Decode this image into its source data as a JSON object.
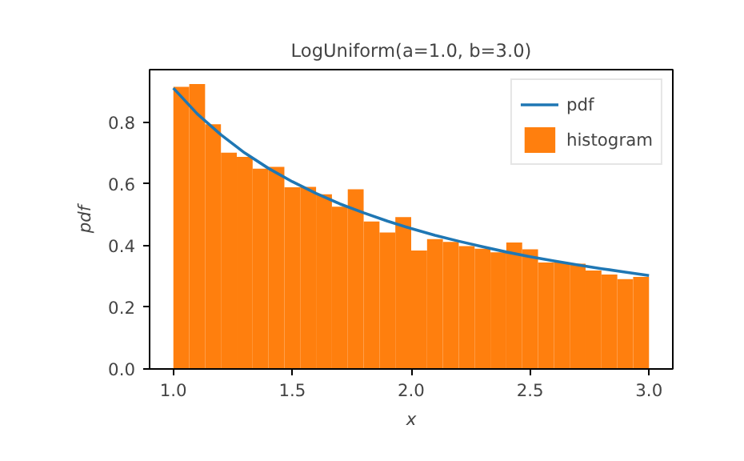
{
  "chart_data": {
    "type": "histogram",
    "title": "LogUniform(a=1.0, b=3.0)",
    "xlabel": "x",
    "ylabel": "pdf",
    "xlim": [
      0.9,
      3.1
    ],
    "ylim": [
      0,
      0.97
    ],
    "xticks": [
      {
        "value": 1.0,
        "label": "1.0"
      },
      {
        "value": 1.5,
        "label": "1.5"
      },
      {
        "value": 2.0,
        "label": "2.0"
      },
      {
        "value": 2.5,
        "label": "2.5"
      },
      {
        "value": 3.0,
        "label": "3.0"
      }
    ],
    "yticks": [
      {
        "value": 0,
        "label": "0.0"
      },
      {
        "value": 0.2,
        "label": "0.2"
      },
      {
        "value": 0.4,
        "label": "0.4"
      },
      {
        "value": 0.6,
        "label": "0.6"
      },
      {
        "value": 0.8,
        "label": "0.8"
      }
    ],
    "grid": false,
    "legend": "top right",
    "series": [
      {
        "name": "histogram",
        "color": "#ff7f0e",
        "bins": [
          1.0,
          1.0667,
          1.1333,
          1.2,
          1.2667,
          1.3333,
          1.4,
          1.4667,
          1.5333,
          1.6,
          1.6667,
          1.7333,
          1.8,
          1.8667,
          1.9333,
          2.0,
          2.0667,
          2.1333,
          2.2,
          2.2667,
          2.3333,
          2.4,
          2.4667,
          2.5333,
          2.6,
          2.6667,
          2.7333,
          2.8,
          2.8667,
          2.9333,
          3.0
        ],
        "values": [
          0.914,
          0.923,
          0.793,
          0.701,
          0.687,
          0.649,
          0.655,
          0.589,
          0.59,
          0.566,
          0.526,
          0.582,
          0.478,
          0.442,
          0.492,
          0.384,
          0.421,
          0.412,
          0.398,
          0.39,
          0.378,
          0.41,
          0.388,
          0.345,
          0.345,
          0.341,
          0.319,
          0.306,
          0.291,
          0.298
        ]
      },
      {
        "type": "line",
        "name": "pdf",
        "color": "#1f77b4",
        "x": [
          1.0,
          1.1,
          1.2,
          1.3,
          1.4,
          1.5,
          1.6,
          1.7,
          1.8,
          1.9,
          2.0,
          2.1,
          2.2,
          2.3,
          2.4,
          2.5,
          2.6,
          2.7,
          2.8,
          2.9,
          3.0
        ],
        "values": [
          0.91,
          0.827,
          0.759,
          0.7,
          0.65,
          0.607,
          0.569,
          0.535,
          0.506,
          0.479,
          0.455,
          0.433,
          0.414,
          0.396,
          0.379,
          0.364,
          0.35,
          0.337,
          0.325,
          0.314,
          0.303
        ]
      }
    ]
  }
}
